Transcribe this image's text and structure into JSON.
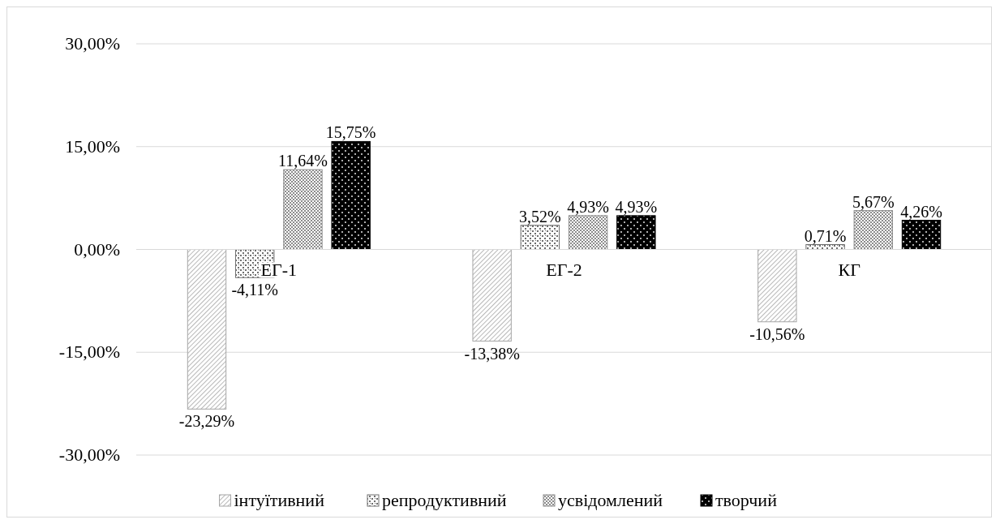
{
  "chart_data": {
    "type": "bar",
    "categories": [
      "ЕГ-1",
      "ЕГ-2",
      "КГ"
    ],
    "series": [
      {
        "name": "інтуїтивний",
        "color": "#a6a6a6",
        "values": [
          -23.29,
          -13.38,
          -10.56
        ],
        "value_labels": [
          "-23,29%",
          "-13,38%",
          "-10,56%"
        ]
      },
      {
        "name": "репродуктивний",
        "color": "#6e6e6e",
        "values": [
          -4.11,
          3.52,
          0.71
        ],
        "value_labels": [
          "-4,11%",
          "3,52%",
          "0,71%"
        ]
      },
      {
        "name": "усвідомлений",
        "color": "#8c8c8c",
        "values": [
          11.64,
          4.93,
          5.67
        ],
        "value_labels": [
          "11,64%",
          "4,93%",
          "5,67%"
        ]
      },
      {
        "name": "творчий",
        "color": "#000000",
        "values": [
          15.75,
          4.93,
          4.26
        ],
        "value_labels": [
          "15,75%",
          "4,93%",
          "4,26%"
        ]
      }
    ],
    "ylim": [
      -30,
      30
    ],
    "yticks": [
      {
        "value": -30,
        "label": "-30,00%"
      },
      {
        "value": -15,
        "label": "-15,00%"
      },
      {
        "value": 0,
        "label": "0,00%"
      },
      {
        "value": 15,
        "label": "15,00%"
      },
      {
        "value": 30,
        "label": "30,00%"
      }
    ],
    "grid": "y",
    "legend": "bottom"
  }
}
